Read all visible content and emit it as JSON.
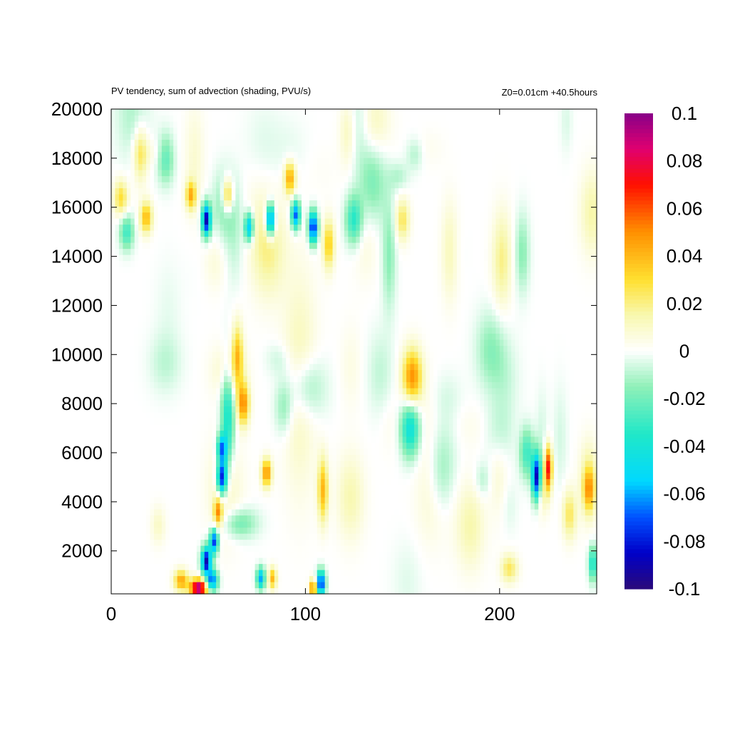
{
  "chart_data": {
    "type": "heatmap",
    "title": "PV tendency, sum of advection (shading, PVU/s)",
    "subtitle": "Z0=0.01cm   +40.5hours",
    "xlabel": "",
    "ylabel": "",
    "xlim": [
      0,
      250
    ],
    "ylim": [
      250,
      20000
    ],
    "x_ticks": [
      "0",
      "100",
      "200"
    ],
    "x_tick_values": [
      0,
      100,
      200
    ],
    "y_ticks": [
      "2000",
      "4000",
      "6000",
      "8000",
      "10000",
      "12000",
      "14000",
      "16000",
      "18000",
      "20000"
    ],
    "y_tick_values": [
      2000,
      4000,
      6000,
      8000,
      10000,
      12000,
      14000,
      16000,
      18000,
      20000
    ],
    "colorbar": {
      "min": -0.1,
      "max": 0.1,
      "ticks": [
        "0.1",
        "0.08",
        "0.06",
        "0.04",
        "0.02",
        "0",
        "-0.02",
        "-0.04",
        "-0.06",
        "-0.08",
        "-0.1"
      ],
      "tick_values": [
        0.1,
        0.08,
        0.06,
        0.04,
        0.02,
        0,
        -0.02,
        -0.04,
        -0.06,
        -0.08,
        -0.1
      ],
      "palette": [
        {
          "v": -0.1,
          "c": "#2a0a7a"
        },
        {
          "v": -0.085,
          "c": "#0000c8"
        },
        {
          "v": -0.07,
          "c": "#0050ff"
        },
        {
          "v": -0.055,
          "c": "#00d8ff"
        },
        {
          "v": -0.035,
          "c": "#20e8c8"
        },
        {
          "v": -0.015,
          "c": "#90f0b8"
        },
        {
          "v": 0,
          "c": "#ffffff"
        },
        {
          "v": 0.015,
          "c": "#f8f8b0"
        },
        {
          "v": 0.03,
          "c": "#ffe030"
        },
        {
          "v": 0.05,
          "c": "#ff9000"
        },
        {
          "v": 0.07,
          "c": "#ff1000"
        },
        {
          "v": 0.085,
          "c": "#e00070"
        },
        {
          "v": 0.1,
          "c": "#880088"
        }
      ]
    },
    "features": [
      {
        "x": 49,
        "y": 15500,
        "sx": 1.6,
        "sy": 450,
        "v": -0.09
      },
      {
        "x": 82,
        "y": 15500,
        "sx": 1.6,
        "sy": 450,
        "v": -0.08
      },
      {
        "x": 104,
        "y": 15200,
        "sx": 1.6,
        "sy": 450,
        "v": -0.085
      },
      {
        "x": 95,
        "y": 15700,
        "sx": 1.6,
        "sy": 400,
        "v": -0.07
      },
      {
        "x": 71,
        "y": 15200,
        "sx": 1.6,
        "sy": 400,
        "v": -0.06
      },
      {
        "x": 18,
        "y": 15600,
        "sx": 2.2,
        "sy": 450,
        "v": 0.04
      },
      {
        "x": 60,
        "y": 16500,
        "sx": 2.0,
        "sy": 500,
        "v": 0.045
      },
      {
        "x": 92,
        "y": 17200,
        "sx": 2.0,
        "sy": 450,
        "v": 0.045
      },
      {
        "x": 41,
        "y": 16500,
        "sx": 1.8,
        "sy": 400,
        "v": 0.04
      },
      {
        "x": 112,
        "y": 14500,
        "sx": 2.0,
        "sy": 700,
        "v": 0.035
      },
      {
        "x": 155,
        "y": 9100,
        "sx": 3.5,
        "sy": 800,
        "v": 0.05
      },
      {
        "x": 154,
        "y": 7000,
        "sx": 3.5,
        "sy": 800,
        "v": -0.045
      },
      {
        "x": 68,
        "y": 8000,
        "sx": 2.2,
        "sy": 600,
        "v": 0.05
      },
      {
        "x": 65,
        "y": 10000,
        "sx": 2.0,
        "sy": 900,
        "v": 0.035
      },
      {
        "x": 57,
        "y": 5000,
        "sx": 1.8,
        "sy": 500,
        "v": -0.085
      },
      {
        "x": 57,
        "y": 6200,
        "sx": 1.8,
        "sy": 400,
        "v": -0.06
      },
      {
        "x": 80,
        "y": 5200,
        "sx": 1.8,
        "sy": 400,
        "v": 0.05
      },
      {
        "x": 109,
        "y": 4500,
        "sx": 1.8,
        "sy": 900,
        "v": 0.04
      },
      {
        "x": 219,
        "y": 5000,
        "sx": 1.6,
        "sy": 650,
        "v": -0.09
      },
      {
        "x": 225,
        "y": 5400,
        "sx": 1.4,
        "sy": 600,
        "v": 0.07
      },
      {
        "x": 49,
        "y": 1600,
        "sx": 1.8,
        "sy": 400,
        "v": -0.09
      },
      {
        "x": 53,
        "y": 2400,
        "sx": 1.5,
        "sy": 350,
        "v": -0.075
      },
      {
        "x": 55,
        "y": 3600,
        "sx": 1.5,
        "sy": 400,
        "v": 0.045
      },
      {
        "x": 45,
        "y": 500,
        "sx": 3.0,
        "sy": 250,
        "v": 0.1
      },
      {
        "x": 36,
        "y": 800,
        "sx": 2.5,
        "sy": 300,
        "v": 0.045
      },
      {
        "x": 52,
        "y": 800,
        "sx": 2.0,
        "sy": 300,
        "v": -0.07
      },
      {
        "x": 83,
        "y": 900,
        "sx": 1.5,
        "sy": 300,
        "v": 0.04
      },
      {
        "x": 108,
        "y": 700,
        "sx": 1.5,
        "sy": 350,
        "v": -0.085
      },
      {
        "x": 104,
        "y": 500,
        "sx": 1.2,
        "sy": 250,
        "v": 0.06
      },
      {
        "x": 77,
        "y": 900,
        "sx": 1.5,
        "sy": 300,
        "v": -0.06
      },
      {
        "x": 60,
        "y": 7500,
        "sx": 2.5,
        "sy": 1500,
        "v": -0.04
      },
      {
        "x": 97,
        "y": 9000,
        "sx": 6.0,
        "sy": 3000,
        "v": 0.015
      },
      {
        "x": 246,
        "y": 4500,
        "sx": 2.0,
        "sy": 600,
        "v": 0.035
      },
      {
        "x": 248,
        "y": 1500,
        "sx": 1.5,
        "sy": 500,
        "v": -0.04
      },
      {
        "x": 214,
        "y": 6000,
        "sx": 2.5,
        "sy": 700,
        "v": -0.03
      },
      {
        "x": 236,
        "y": 3500,
        "sx": 2.5,
        "sy": 700,
        "v": 0.025
      },
      {
        "x": 205,
        "y": 1300,
        "sx": 3.0,
        "sy": 400,
        "v": 0.025
      },
      {
        "x": 125,
        "y": 15500,
        "sx": 3.0,
        "sy": 700,
        "v": -0.035
      },
      {
        "x": 150,
        "y": 15500,
        "sx": 2.5,
        "sy": 600,
        "v": 0.025
      },
      {
        "x": 5,
        "y": 16400,
        "sx": 2.5,
        "sy": 500,
        "v": 0.03
      },
      {
        "x": 28,
        "y": 18000,
        "sx": 3.0,
        "sy": 700,
        "v": -0.025
      },
      {
        "x": 15,
        "y": 18200,
        "sx": 2.5,
        "sy": 800,
        "v": 0.025
      },
      {
        "x": 8,
        "y": 15000,
        "sx": 2.5,
        "sy": 500,
        "v": -0.03
      },
      {
        "x": 170,
        "y": 5000,
        "sx": 5.0,
        "sy": 1500,
        "v": -0.02
      },
      {
        "x": 185,
        "y": 3000,
        "sx": 5.0,
        "sy": 1200,
        "v": 0.015
      }
    ]
  }
}
